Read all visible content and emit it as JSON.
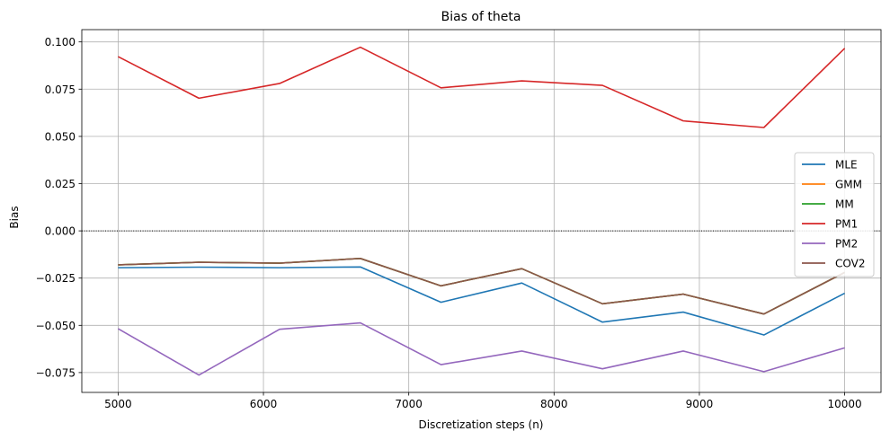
{
  "chart_data": {
    "type": "line",
    "title": "Bias of theta",
    "xlabel": "Discretization steps (n)",
    "ylabel": "Bias",
    "xlim": [
      4750,
      10250
    ],
    "ylim": [
      -0.0855,
      0.1065
    ],
    "x_ticks": [
      5000,
      6000,
      7000,
      8000,
      9000,
      10000
    ],
    "x_tick_labels": [
      "5000",
      "6000",
      "7000",
      "8000",
      "9000",
      "10000"
    ],
    "y_ticks": [
      -0.075,
      -0.05,
      -0.025,
      0.0,
      0.025,
      0.05,
      0.075,
      0.1
    ],
    "y_tick_labels": [
      "−0.075",
      "−0.050",
      "−0.025",
      "0.000",
      "0.025",
      "0.050",
      "0.075",
      "0.100"
    ],
    "grid": true,
    "legend_position": "center-right",
    "reference_line": {
      "y": 0.0,
      "style": "dotted",
      "color": "#000000"
    },
    "x": [
      5000,
      5556,
      6111,
      6667,
      7222,
      7778,
      8333,
      8889,
      9444,
      10000
    ],
    "series": [
      {
        "name": "MLE",
        "color": "#1f77b4",
        "values": [
          -0.0195,
          -0.0192,
          -0.0195,
          -0.0191,
          -0.0378,
          -0.0276,
          -0.0483,
          -0.043,
          -0.0551,
          -0.033
        ]
      },
      {
        "name": "GMM",
        "color": "#ff7f0e",
        "values": [
          -0.018,
          -0.0166,
          -0.0171,
          -0.0146,
          -0.0291,
          -0.02,
          -0.0386,
          -0.0335,
          -0.044,
          -0.022
        ]
      },
      {
        "name": "MM",
        "color": "#2ca02c",
        "values": [
          -0.018,
          -0.0166,
          -0.0171,
          -0.0146,
          -0.0291,
          -0.02,
          -0.0386,
          -0.0335,
          -0.044,
          -0.022
        ]
      },
      {
        "name": "PM1",
        "color": "#d62728",
        "values": [
          0.0922,
          0.0702,
          0.078,
          0.0972,
          0.0757,
          0.0794,
          0.077,
          0.0582,
          0.0547,
          0.0966
        ]
      },
      {
        "name": "PM2",
        "color": "#9467bd",
        "values": [
          -0.0518,
          -0.0763,
          -0.0521,
          -0.0487,
          -0.0708,
          -0.0636,
          -0.073,
          -0.0636,
          -0.0745,
          -0.0619
        ]
      },
      {
        "name": "COV2",
        "color": "#8c564b",
        "values": [
          -0.018,
          -0.0166,
          -0.0171,
          -0.0146,
          -0.0291,
          -0.02,
          -0.0386,
          -0.0335,
          -0.044,
          -0.022
        ]
      }
    ]
  }
}
